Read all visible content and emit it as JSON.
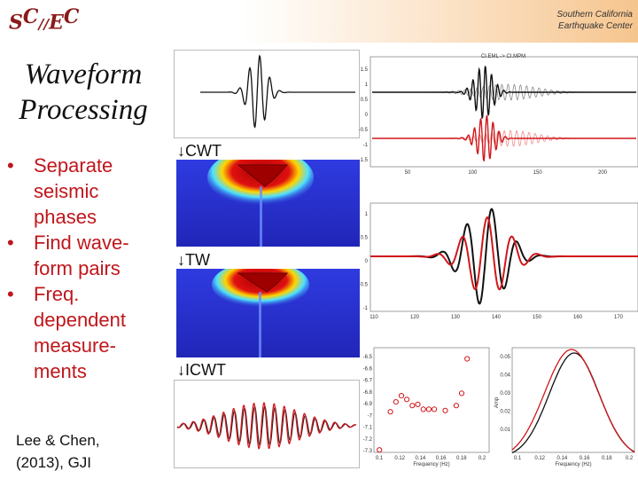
{
  "header": {
    "logo": {
      "l1": "S",
      "l2": "C",
      "l3": "E",
      "l4": "C"
    },
    "org_line1": "Southern California",
    "org_line2": "Earthquake Center"
  },
  "slide": {
    "title_line1": "Waveform",
    "title_line2": "Processing",
    "bullets": [
      "Separate seismic phases",
      "Find wave-form pairs",
      "Freq. dependent measure-ments"
    ],
    "citation_line1": "Lee & Chen,",
    "citation_line2": "(2013), GJI",
    "step_labels": [
      "↓CWT",
      "↓TW",
      "↓ICWT"
    ]
  },
  "figures": {
    "top_right": {
      "title": "CI.EML -> CI.MPM",
      "y_ticks": [
        "1.5",
        "1",
        "0.5",
        "0",
        "-0.5",
        "-1",
        "-1.5"
      ],
      "x_ticks": [
        "50",
        "100",
        "150",
        "200"
      ]
    },
    "middle_right": {
      "y_ticks": [
        "1",
        "0.5",
        "0",
        "-0.5",
        "-1"
      ],
      "x_ticks": [
        "110",
        "120",
        "130",
        "140",
        "150",
        "160",
        "170"
      ]
    },
    "bottom_left": {
      "y_ticks": [
        "-6.5",
        "-6.6",
        "-6.7",
        "-6.8",
        "-6.9",
        "-7",
        "-7.1",
        "-7.2",
        "-7.3"
      ],
      "x_ticks": [
        "0.1",
        "0.12",
        "0.14",
        "0.16",
        "0.18",
        "0.2"
      ],
      "xlabel": "Frequency (Hz)",
      "points": [
        [
          0.1,
          -7.28
        ],
        [
          0.11,
          -6.97
        ],
        [
          0.115,
          -6.89
        ],
        [
          0.12,
          -6.84
        ],
        [
          0.125,
          -6.87
        ],
        [
          0.13,
          -6.92
        ],
        [
          0.135,
          -6.91
        ],
        [
          0.14,
          -6.95
        ],
        [
          0.145,
          -6.95
        ],
        [
          0.15,
          -6.95
        ],
        [
          0.16,
          -6.96
        ],
        [
          0.17,
          -6.92
        ],
        [
          0.175,
          -6.82
        ],
        [
          0.18,
          -6.54
        ]
      ],
      "xlim": [
        0.095,
        0.2
      ],
      "ylim": [
        -7.3,
        -6.45
      ]
    },
    "bottom_right": {
      "y_ticks": [
        "0.05",
        "0.04",
        "0.03",
        "0.02",
        "0.01"
      ],
      "x_ticks": [
        "0.1",
        "0.12",
        "0.14",
        "0.16",
        "0.18",
        "0.2"
      ],
      "xlabel": "Frequency (Hz)",
      "ylabel": "Amp"
    }
  },
  "colors": {
    "accent": "#c0161b",
    "black_trace": "#111111",
    "red_trace": "#d1171b"
  }
}
